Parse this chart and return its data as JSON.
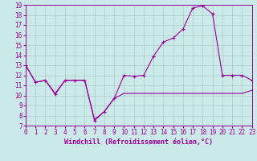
{
  "xlabel": "Windchill (Refroidissement éolien,°C)",
  "background_color": "#cce9e9",
  "grid_color": "#aacccc",
  "line_color": "#990099",
  "x_hours": [
    0,
    1,
    2,
    3,
    4,
    5,
    6,
    7,
    8,
    9,
    10,
    11,
    12,
    13,
    14,
    15,
    16,
    17,
    18,
    19,
    20,
    21,
    22,
    23
  ],
  "temp_values": [
    13.0,
    11.3,
    11.5,
    10.1,
    11.5,
    11.5,
    11.5,
    7.5,
    8.4,
    9.7,
    12.0,
    11.9,
    12.0,
    13.9,
    15.3,
    15.7,
    16.6,
    18.7,
    18.9,
    18.1,
    12.0,
    12.0,
    12.0,
    11.5
  ],
  "windchill_values": [
    13.0,
    11.3,
    11.5,
    10.2,
    11.5,
    11.5,
    11.5,
    7.6,
    8.4,
    9.7,
    10.2,
    10.2,
    10.2,
    10.2,
    10.2,
    10.2,
    10.2,
    10.2,
    10.2,
    10.2,
    10.2,
    10.2,
    10.2,
    10.5
  ],
  "ylim": [
    7,
    19
  ],
  "xlim": [
    0,
    23
  ],
  "yticks": [
    7,
    8,
    9,
    10,
    11,
    12,
    13,
    14,
    15,
    16,
    17,
    18,
    19
  ],
  "xticks": [
    0,
    1,
    2,
    3,
    4,
    5,
    6,
    7,
    8,
    9,
    10,
    11,
    12,
    13,
    14,
    15,
    16,
    17,
    18,
    19,
    20,
    21,
    22,
    23
  ],
  "tick_fontsize": 5.5,
  "xlabel_fontsize": 6.0
}
